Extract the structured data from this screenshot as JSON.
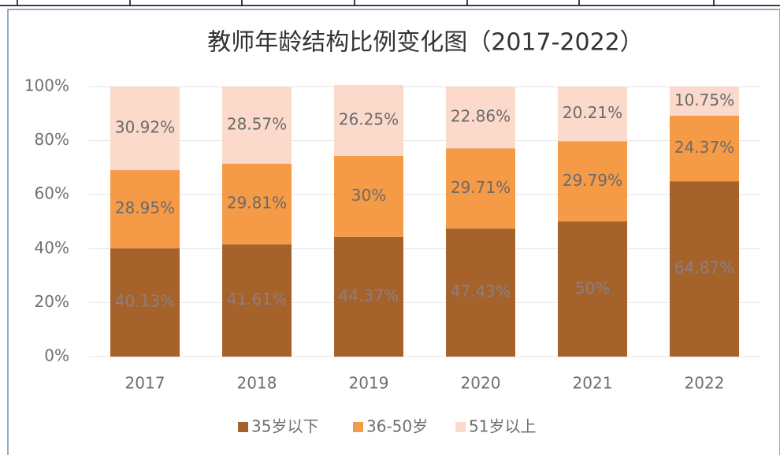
{
  "chart_data": {
    "type": "stacked_bar",
    "title": "教师年龄结构比例变化图（2017-2022）",
    "categories": [
      "2017",
      "2018",
      "2019",
      "2020",
      "2021",
      "2022"
    ],
    "series": [
      {
        "name": "35岁以下",
        "color": "#a5622b",
        "values": [
          40.13,
          41.61,
          44.37,
          47.43,
          50,
          64.87
        ],
        "value_labels": [
          "40.13%",
          "41.61%",
          "44.37%",
          "47.43%",
          "50%",
          "64.87%"
        ]
      },
      {
        "name": "36-50岁",
        "color": "#f59a46",
        "values": [
          28.95,
          29.81,
          30,
          29.71,
          29.79,
          24.37
        ],
        "value_labels": [
          "28.95%",
          "29.81%",
          "30%",
          "29.71%",
          "29.79%",
          "24.37%"
        ]
      },
      {
        "name": "51岁以上",
        "color": "#fbdacb",
        "values": [
          30.92,
          28.57,
          26.25,
          22.86,
          20.21,
          10.75
        ],
        "value_labels": [
          "30.92%",
          "28.57%",
          "26.25%",
          "22.86%",
          "20.21%",
          "10.75%"
        ]
      }
    ],
    "ylim": [
      0,
      100
    ],
    "yticks": [
      {
        "value": 0,
        "label": "0%"
      },
      {
        "value": 20,
        "label": "20%"
      },
      {
        "value": 40,
        "label": "40%"
      },
      {
        "value": 60,
        "label": "60%"
      },
      {
        "value": 80,
        "label": "80%"
      },
      {
        "value": 100,
        "label": "100%"
      }
    ],
    "grid": true,
    "legend": "bottom"
  }
}
